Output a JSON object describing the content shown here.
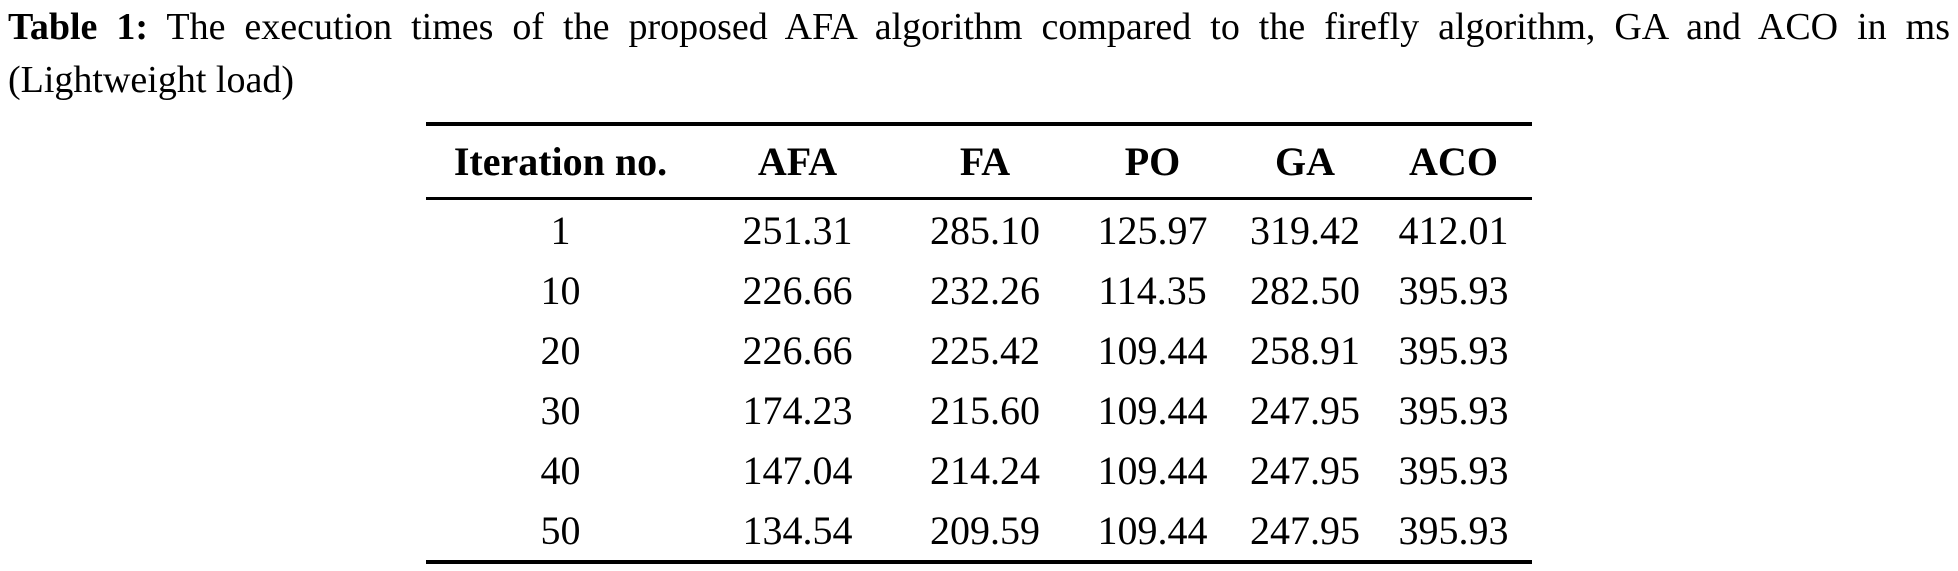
{
  "page": {
    "background": "#ffffff",
    "text_color": "#000000"
  },
  "caption": {
    "label": "Table 1:",
    "line1": "The execution times of the proposed AFA algorithm compared to the firefly algorithm, GA and ACO in ms",
    "line2": "(Lightweight load)"
  },
  "table": {
    "columns": [
      "Iteration no.",
      "AFA",
      "FA",
      "PO",
      "GA",
      "ACO"
    ],
    "rows": [
      [
        "1",
        "251.31",
        "285.10",
        "125.97",
        "319.42",
        "412.01"
      ],
      [
        "10",
        "226.66",
        "232.26",
        "114.35",
        "282.50",
        "395.93"
      ],
      [
        "20",
        "226.66",
        "225.42",
        "109.44",
        "258.91",
        "395.93"
      ],
      [
        "30",
        "174.23",
        "215.60",
        "109.44",
        "247.95",
        "395.93"
      ],
      [
        "40",
        "147.04",
        "214.24",
        "109.44",
        "247.95",
        "395.93"
      ],
      [
        "50",
        "134.54",
        "209.59",
        "109.44",
        "247.95",
        "395.93"
      ]
    ]
  },
  "chart_data": {
    "type": "table",
    "title": "Table 1: The execution times of the proposed AFA algorithm compared to the firefly algorithm, GA and ACO in ms (Lightweight load)",
    "columns": [
      "Iteration no.",
      "AFA",
      "FA",
      "PO",
      "GA",
      "ACO"
    ],
    "rows": [
      [
        1,
        251.31,
        285.1,
        125.97,
        319.42,
        412.01
      ],
      [
        10,
        226.66,
        232.26,
        114.35,
        282.5,
        395.93
      ],
      [
        20,
        226.66,
        225.42,
        109.44,
        258.91,
        395.93
      ],
      [
        30,
        174.23,
        215.6,
        109.44,
        247.95,
        395.93
      ],
      [
        40,
        147.04,
        214.24,
        109.44,
        247.95,
        395.93
      ],
      [
        50,
        134.54,
        209.59,
        109.44,
        247.95,
        395.93
      ]
    ]
  }
}
